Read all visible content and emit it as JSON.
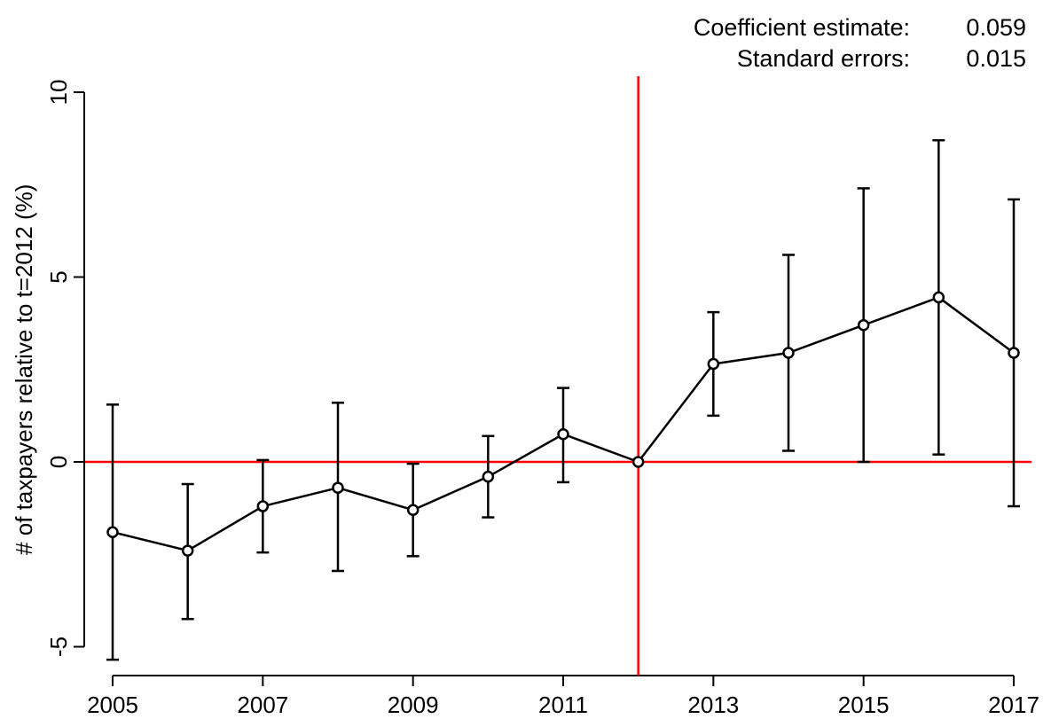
{
  "stats": {
    "coef_label": "Coefficient estimate:",
    "coef_value": "0.059",
    "se_label": "Standard errors:",
    "se_value": "0.015"
  },
  "chart_data": {
    "type": "line",
    "title": "",
    "xlabel": "",
    "ylabel": "# of taxpayers relative to t=2012 (%)",
    "xlim": [
      2005,
      2017
    ],
    "ylim": [
      -5.3,
      10.3
    ],
    "x_ticks": [
      2005,
      2007,
      2009,
      2011,
      2013,
      2015,
      2017
    ],
    "x_tick_labels": [
      "2005",
      "2007",
      "2009",
      "2011",
      "2013",
      "2015",
      "2017"
    ],
    "y_ticks": [
      -5,
      0,
      5,
      10
    ],
    "y_tick_labels": [
      "-5",
      "0",
      "5",
      "10"
    ],
    "x": [
      2005,
      2006,
      2007,
      2008,
      2009,
      2010,
      2011,
      2012,
      2013,
      2014,
      2015,
      2016,
      2017
    ],
    "y": [
      -1.9,
      -2.4,
      -1.2,
      -0.7,
      -1.3,
      -0.4,
      0.75,
      0.0,
      2.65,
      2.95,
      3.7,
      4.45,
      2.95
    ],
    "ci_low": [
      -5.35,
      -4.25,
      -2.45,
      -2.95,
      -2.55,
      -1.5,
      -0.55,
      0.0,
      1.25,
      0.3,
      0.0,
      0.2,
      -1.2
    ],
    "ci_high": [
      1.55,
      -0.6,
      0.05,
      1.6,
      -0.05,
      0.7,
      2.0,
      0.0,
      4.05,
      5.6,
      7.4,
      8.7,
      7.1
    ],
    "reference_lines": {
      "horizontal_y": 0,
      "vertical_x": 2012,
      "color": "#ff0000"
    },
    "line_color": "#000000",
    "grid": false,
    "legend": "none"
  }
}
